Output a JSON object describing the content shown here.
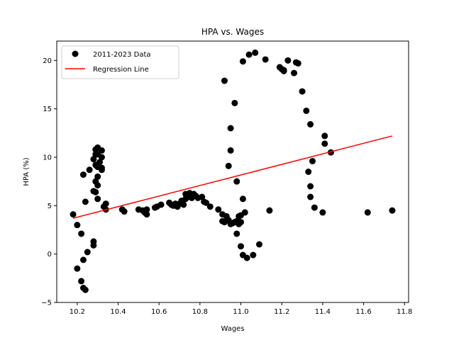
{
  "chart_data": {
    "type": "scatter",
    "title": "HPA vs. Wages",
    "xlabel": "Wages",
    "ylabel": "HPA (%)",
    "xlim": [
      10.1,
      11.82
    ],
    "ylim": [
      -5,
      22
    ],
    "xticks": [
      "10.2",
      "10.4",
      "10.6",
      "10.8",
      "11.0",
      "11.2",
      "11.4",
      "11.6",
      "11.8"
    ],
    "xtick_values": [
      10.2,
      10.4,
      10.6,
      10.8,
      11.0,
      11.2,
      11.4,
      11.6,
      11.8
    ],
    "yticks": [
      "−5",
      "0",
      "5",
      "10",
      "15",
      "20"
    ],
    "ytick_values": [
      -5,
      0,
      5,
      10,
      15,
      20
    ],
    "grid": false,
    "legend_position": "upper-left",
    "series": [
      {
        "name": "2011-2023 Data",
        "kind": "scatter",
        "color": "#000000",
        "points": [
          [
            10.18,
            4.1
          ],
          [
            10.2,
            3.0
          ],
          [
            10.2,
            -1.5
          ],
          [
            10.22,
            2.1
          ],
          [
            10.22,
            -2.8
          ],
          [
            10.23,
            -0.6
          ],
          [
            10.23,
            -3.5
          ],
          [
            10.24,
            -3.7
          ],
          [
            10.25,
            0.2
          ],
          [
            10.28,
            0.9
          ],
          [
            10.28,
            1.3
          ],
          [
            10.23,
            8.2
          ],
          [
            10.24,
            5.4
          ],
          [
            10.26,
            8.7
          ],
          [
            10.28,
            9.8
          ],
          [
            10.28,
            6.5
          ],
          [
            10.29,
            6.4
          ],
          [
            10.29,
            7.5
          ],
          [
            10.29,
            9.2
          ],
          [
            10.29,
            10.3
          ],
          [
            10.29,
            10.8
          ],
          [
            10.3,
            7.1
          ],
          [
            10.3,
            5.7
          ],
          [
            10.3,
            8.0
          ],
          [
            10.3,
            9.0
          ],
          [
            10.3,
            10.3
          ],
          [
            10.3,
            11.0
          ],
          [
            10.31,
            9.5
          ],
          [
            10.32,
            10.0
          ],
          [
            10.32,
            10.7
          ],
          [
            10.32,
            8.9
          ],
          [
            10.32,
            8.7
          ],
          [
            10.33,
            4.9
          ],
          [
            10.34,
            4.6
          ],
          [
            10.34,
            5.2
          ],
          [
            10.42,
            4.6
          ],
          [
            10.43,
            4.4
          ],
          [
            10.5,
            4.6
          ],
          [
            10.52,
            4.5
          ],
          [
            10.53,
            4.3
          ],
          [
            10.54,
            4.1
          ],
          [
            10.54,
            4.6
          ],
          [
            10.58,
            4.8
          ],
          [
            10.59,
            4.9
          ],
          [
            10.61,
            5.1
          ],
          [
            10.65,
            5.3
          ],
          [
            10.66,
            5.1
          ],
          [
            10.67,
            5.0
          ],
          [
            10.68,
            5.2
          ],
          [
            10.69,
            4.9
          ],
          [
            10.7,
            5.2
          ],
          [
            10.71,
            5.5
          ],
          [
            10.72,
            5.1
          ],
          [
            10.73,
            5.7
          ],
          [
            10.73,
            6.2
          ],
          [
            10.74,
            5.9
          ],
          [
            10.75,
            6.0
          ],
          [
            10.75,
            6.3
          ],
          [
            10.76,
            5.8
          ],
          [
            10.77,
            6.2
          ],
          [
            10.78,
            6.0
          ],
          [
            10.79,
            5.8
          ],
          [
            10.81,
            5.9
          ],
          [
            10.82,
            5.4
          ],
          [
            10.83,
            5.3
          ],
          [
            10.85,
            4.9
          ],
          [
            10.89,
            4.6
          ],
          [
            10.91,
            4.1
          ],
          [
            10.91,
            3.4
          ],
          [
            10.92,
            3.3
          ],
          [
            10.93,
            3.9
          ],
          [
            10.94,
            3.5
          ],
          [
            10.95,
            3.1
          ],
          [
            10.96,
            3.2
          ],
          [
            10.97,
            3.3
          ],
          [
            10.98,
            3.4
          ],
          [
            10.98,
            2.1
          ],
          [
            10.99,
            3.1
          ],
          [
            10.99,
            3.9
          ],
          [
            11.0,
            4.0
          ],
          [
            11.0,
            3.3
          ],
          [
            11.0,
            0.8
          ],
          [
            11.01,
            -0.1
          ],
          [
            11.02,
            4.3
          ],
          [
            11.03,
            -0.4
          ],
          [
            11.06,
            -0.1
          ],
          [
            11.09,
            1.0
          ],
          [
            10.92,
            17.9
          ],
          [
            10.94,
            9.1
          ],
          [
            10.95,
            13.0
          ],
          [
            10.95,
            10.7
          ],
          [
            10.97,
            15.6
          ],
          [
            10.98,
            7.5
          ],
          [
            11.01,
            5.7
          ],
          [
            11.01,
            19.9
          ],
          [
            11.04,
            20.6
          ],
          [
            11.07,
            20.8
          ],
          [
            11.12,
            20.1
          ],
          [
            11.14,
            4.5
          ],
          [
            11.19,
            19.3
          ],
          [
            11.2,
            19.1
          ],
          [
            11.21,
            18.9
          ],
          [
            11.21,
            19.0
          ],
          [
            11.23,
            20.0
          ],
          [
            11.26,
            18.7
          ],
          [
            11.27,
            19.8
          ],
          [
            11.28,
            19.7
          ],
          [
            11.3,
            16.8
          ],
          [
            11.32,
            14.8
          ],
          [
            11.33,
            8.5
          ],
          [
            11.34,
            13.4
          ],
          [
            11.34,
            7.0
          ],
          [
            11.34,
            5.9
          ],
          [
            11.35,
            9.6
          ],
          [
            11.36,
            4.8
          ],
          [
            11.4,
            4.3
          ],
          [
            11.41,
            12.2
          ],
          [
            11.41,
            11.4
          ],
          [
            11.44,
            10.5
          ],
          [
            11.62,
            4.3
          ],
          [
            11.74,
            4.5
          ]
        ]
      },
      {
        "name": "Regression Line",
        "kind": "line",
        "color": "#ff0000",
        "points": [
          [
            10.18,
            3.7
          ],
          [
            11.74,
            12.2
          ]
        ]
      }
    ]
  }
}
